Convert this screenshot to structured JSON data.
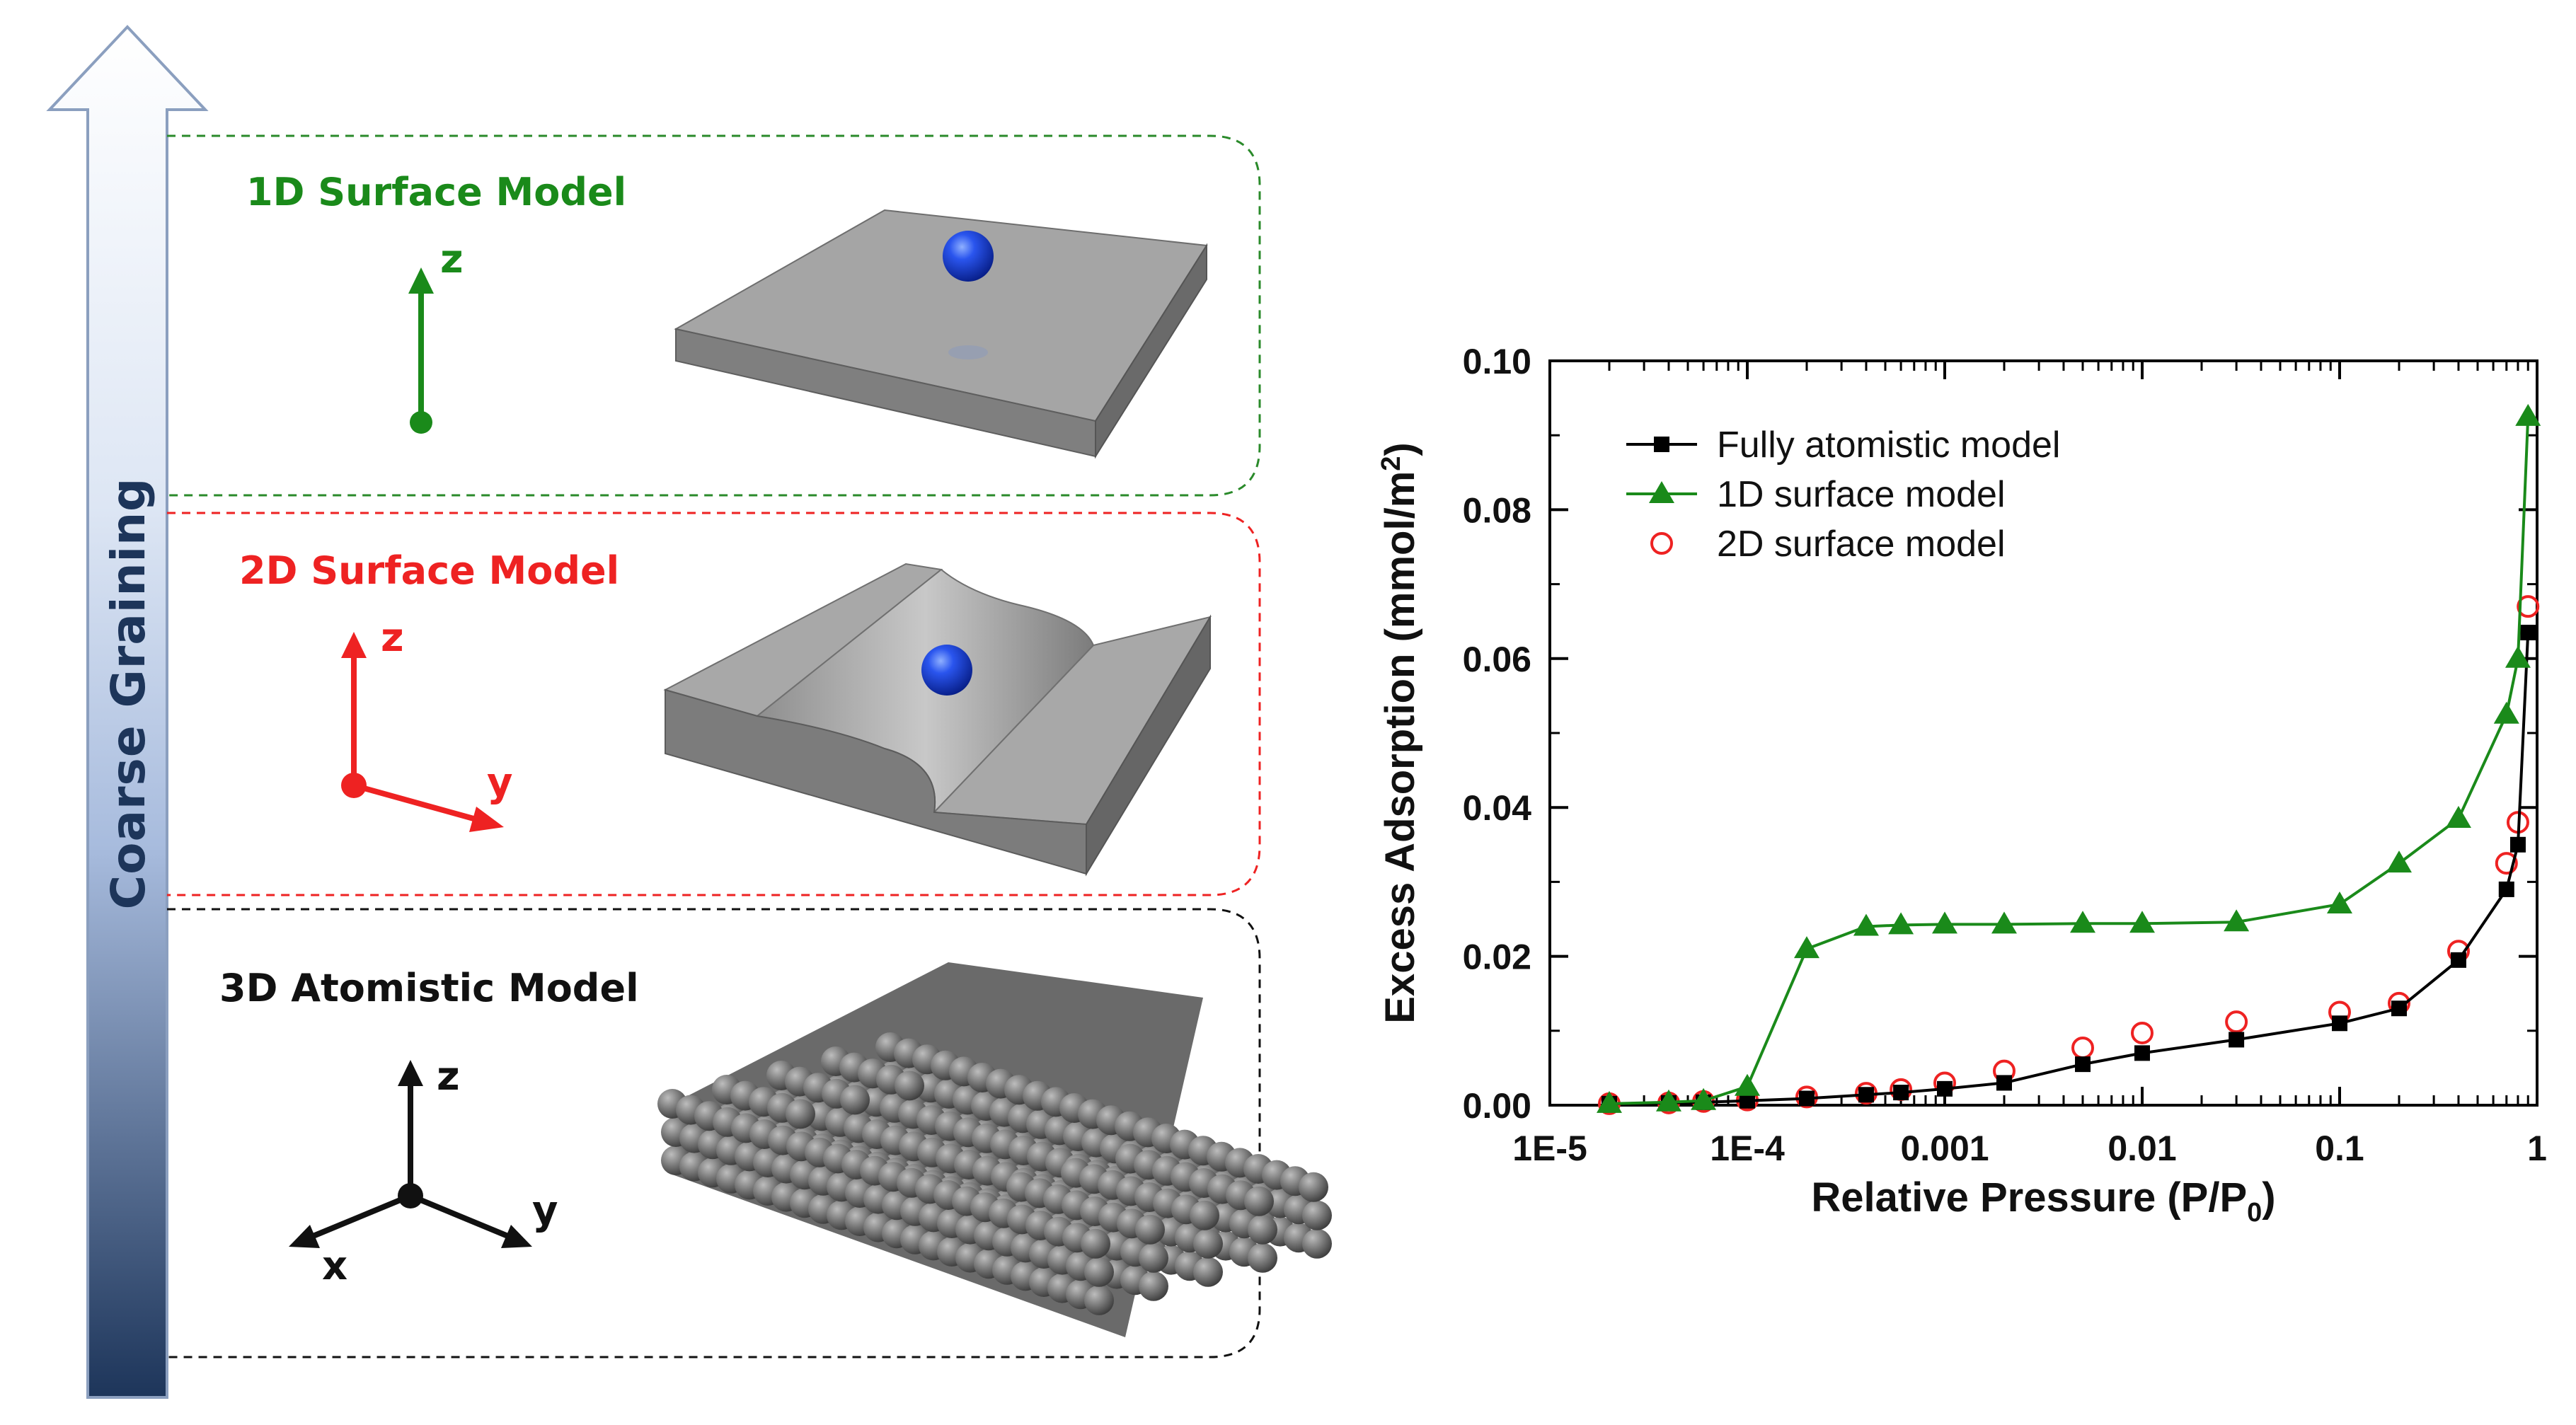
{
  "side_arrow": {
    "label": "Coarse Graining"
  },
  "models": [
    {
      "title": "1D Surface Model",
      "color": "#1a8a1a",
      "axes": [
        "z"
      ]
    },
    {
      "title": "2D Surface Model",
      "color": "#ee2222",
      "axes": [
        "z",
        "y"
      ]
    },
    {
      "title": "3D Atomistic Model",
      "color": "#111111",
      "axes": [
        "z",
        "x",
        "y"
      ]
    }
  ],
  "colors": {
    "sphere": "#1a44e0",
    "slab": "#9a9a9a",
    "arrow_top": "#ffffff",
    "arrow_bottom": "#1d355a"
  },
  "chart_data": {
    "type": "line",
    "xlabel_main": "Relative Pressure (P/P",
    "xlabel_sub": "0",
    "xlabel_tail": ")",
    "ylabel_main": "Excess Adsorption (mmol/m",
    "ylabel_sup": "2",
    "ylabel_tail": ")",
    "x_scale": "log",
    "xlim": [
      1e-05,
      1
    ],
    "ylim": [
      0,
      0.1
    ],
    "x_tick_labels": [
      "1E-5",
      "1E-4",
      "0.001",
      "0.01",
      "0.1",
      "1"
    ],
    "y_tick_labels": [
      "0.00",
      "0.02",
      "0.04",
      "0.06",
      "0.08",
      "0.10"
    ],
    "legend_position": "top-left",
    "series": [
      {
        "name": "Fully atomistic model",
        "color": "#000000",
        "marker": "square",
        "x": [
          2e-05,
          4e-05,
          6e-05,
          0.0001,
          0.0002,
          0.0004,
          0.0006,
          0.001,
          0.002,
          0.005,
          0.01,
          0.03,
          0.1,
          0.2,
          0.4,
          0.7,
          0.8,
          0.9
        ],
        "y": [
          0.0002,
          0.0003,
          0.0004,
          0.0006,
          0.0009,
          0.0014,
          0.0017,
          0.0022,
          0.003,
          0.0055,
          0.007,
          0.0088,
          0.011,
          0.013,
          0.0195,
          0.029,
          0.035,
          0.0635
        ]
      },
      {
        "name": "1D surface model",
        "color": "#1a8a1a",
        "marker": "triangle",
        "x": [
          2e-05,
          4e-05,
          6e-05,
          0.0001,
          0.0002,
          0.0004,
          0.0006,
          0.001,
          0.002,
          0.005,
          0.01,
          0.03,
          0.1,
          0.2,
          0.4,
          0.7,
          0.8,
          0.9
        ],
        "y": [
          0.0002,
          0.0004,
          0.0006,
          0.0025,
          0.021,
          0.024,
          0.0242,
          0.0243,
          0.0243,
          0.0244,
          0.0244,
          0.0246,
          0.027,
          0.0325,
          0.0385,
          0.0525,
          0.06,
          0.0925
        ]
      },
      {
        "name": "2D surface model",
        "color": "#ee2222",
        "marker": "circle",
        "x": [
          2e-05,
          4e-05,
          6e-05,
          0.0001,
          0.0002,
          0.0004,
          0.0006,
          0.001,
          0.002,
          0.005,
          0.01,
          0.03,
          0.1,
          0.2,
          0.4,
          0.7,
          0.8,
          0.9
        ],
        "y": [
          0.0002,
          0.0003,
          0.0005,
          0.0007,
          0.0011,
          0.0016,
          0.0021,
          0.003,
          0.0046,
          0.0077,
          0.0097,
          0.0112,
          0.0125,
          0.0137,
          0.0207,
          0.0325,
          0.038,
          0.067
        ]
      }
    ]
  }
}
